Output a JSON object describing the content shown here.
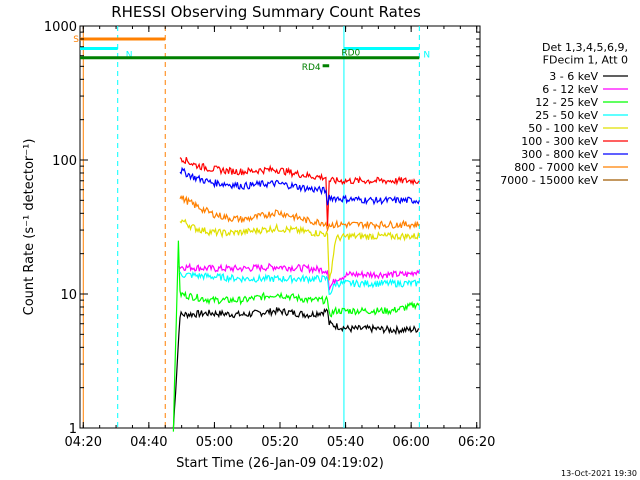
{
  "chart_data": {
    "type": "line",
    "title": "RHESSI Observing Summary Count Rates",
    "xlabel": "Start Time (26-Jan-09 04:19:02)",
    "ylabel": "Count Rate (s⁻¹ detector⁻¹)",
    "x_units": "minutes after 04:19:02",
    "y_scale": "log",
    "xlim": [
      0,
      122
    ],
    "ylim": [
      1,
      1000
    ],
    "x_ticks": [
      {
        "value": 1,
        "label": "04:20"
      },
      {
        "value": 21,
        "label": "04:40"
      },
      {
        "value": 41,
        "label": "05:00"
      },
      {
        "value": 61,
        "label": "05:20"
      },
      {
        "value": 81,
        "label": "05:40"
      },
      {
        "value": 101,
        "label": "06:00"
      },
      {
        "value": 121,
        "label": "06:20"
      }
    ],
    "y_ticks": [
      {
        "value": 1,
        "label": "1"
      },
      {
        "value": 10,
        "label": "10"
      },
      {
        "value": 100,
        "label": "100"
      },
      {
        "value": 1000,
        "label": "1000"
      }
    ],
    "grid": false,
    "legend": {
      "placement": "right",
      "header": [
        "Det 1,3,4,5,6,9,",
        "FDecim 1, Att 0"
      ]
    },
    "series": [
      {
        "name": "3 - 6 keV",
        "color": "#000000",
        "x": [
          28.5,
          30.5,
          40,
          50,
          60,
          70,
          75.5,
          76,
          78,
          82,
          90,
          95,
          100,
          103.5
        ],
        "y": [
          1,
          7,
          7.2,
          7.0,
          7.5,
          7.0,
          7.5,
          6.0,
          5.8,
          5.5,
          5.5,
          5.4,
          5.4,
          5.5
        ]
      },
      {
        "name": "6 - 12 keV",
        "color": "#ff00ff",
        "x": [
          30,
          30.5,
          40,
          50,
          60,
          70,
          75.5,
          76,
          78,
          82,
          90,
          95,
          100,
          103.5
        ],
        "y": [
          16,
          16,
          15.5,
          15.5,
          16,
          15.5,
          15.0,
          11.0,
          13.0,
          14.0,
          14.0,
          14.0,
          14.0,
          15.0
        ]
      },
      {
        "name": "12 - 25 keV",
        "color": "#00ff00",
        "x": [
          28.5,
          30,
          30.5,
          40,
          50,
          60,
          70,
          75.5,
          76,
          78,
          82,
          90,
          95,
          100,
          103.5
        ],
        "y": [
          1,
          25,
          10,
          9,
          9,
          10,
          9,
          9,
          7,
          7.5,
          7.5,
          7.5,
          7.5,
          8,
          8.5
        ]
      },
      {
        "name": "25 - 50 keV",
        "color": "#00ffff",
        "x": [
          30.5,
          40,
          50,
          60,
          70,
          75.5,
          76,
          78,
          82,
          90,
          95,
          100,
          103.5
        ],
        "y": [
          14,
          13.5,
          13,
          13,
          13,
          13,
          10,
          12,
          12,
          12,
          12,
          12,
          12
        ]
      },
      {
        "name": "50 - 100 keV",
        "color": "#e0e000",
        "x": [
          30.5,
          35,
          40,
          45,
          50,
          55,
          60,
          65,
          70,
          75.5,
          76,
          78,
          82,
          90,
          100,
          103.5
        ],
        "y": [
          36,
          31,
          29,
          28.5,
          29,
          30,
          31,
          30,
          29,
          28,
          12,
          26,
          27,
          27,
          27,
          27
        ]
      },
      {
        "name": "100 - 300 keV",
        "color": "#ff0000",
        "x": [
          30.5,
          35,
          40,
          45,
          50,
          55,
          60,
          65,
          70,
          75,
          75.5,
          76,
          78,
          82,
          90,
          100,
          103.5
        ],
        "y": [
          105,
          92,
          86,
          83,
          82,
          84,
          85,
          80,
          76,
          74,
          32,
          70,
          70,
          70,
          70,
          70,
          70
        ]
      },
      {
        "name": "300 - 800 keV",
        "color": "#0000ff",
        "x": [
          30.5,
          35,
          40,
          45,
          50,
          55,
          60,
          65,
          70,
          75,
          75.5,
          76,
          78,
          82,
          90,
          100,
          103.5
        ],
        "y": [
          84,
          74,
          68,
          66,
          64,
          66,
          67,
          64,
          61,
          59,
          46,
          53,
          52,
          51,
          50,
          50,
          50
        ]
      },
      {
        "name": "800 - 7000 keV",
        "color": "#ff8000",
        "x": [
          30.5,
          35,
          40,
          45,
          50,
          55,
          60,
          65,
          70,
          75,
          75.5,
          76,
          78,
          82,
          90,
          100,
          103.5
        ],
        "y": [
          53,
          46,
          40,
          37,
          36,
          38,
          41,
          38,
          35,
          34,
          30,
          33,
          33,
          33,
          33,
          33,
          33
        ]
      },
      {
        "name": "7000 - 15000 keV",
        "color": "#a05a00",
        "x": [],
        "y": []
      }
    ],
    "vertical_markers": [
      {
        "x": 1,
        "color": "#ff8000",
        "style": "solid"
      },
      {
        "x": 11.5,
        "color": "#00ffff",
        "style": "dashed"
      },
      {
        "x": 26,
        "color": "#ff8000",
        "style": "dashed"
      },
      {
        "x": 80.5,
        "color": "#00ffff",
        "style": "solid"
      },
      {
        "x": 103.5,
        "color": "#00ffff",
        "style": "dashed"
      }
    ],
    "flag_bars": [
      {
        "label": "S",
        "color": "#ff8000",
        "x_start": 0,
        "x_end": 26,
        "y": 800
      },
      {
        "label": "N",
        "color": "#00ffff",
        "x_start": 0,
        "x_end": 11.5,
        "y": 680
      },
      {
        "label": "N",
        "color": "#00ffff",
        "x_start": 80.5,
        "x_end": 103.5,
        "y": 680
      },
      {
        "label": "RD0",
        "color": "#008000",
        "x_start": 0,
        "x_end": 103.5,
        "y": 580
      },
      {
        "label": "RD4",
        "color": "#008000",
        "x_start": 74,
        "x_end": 76,
        "y": 505
      }
    ],
    "footer_timestamp": "13-Oct-2021 19:30"
  }
}
